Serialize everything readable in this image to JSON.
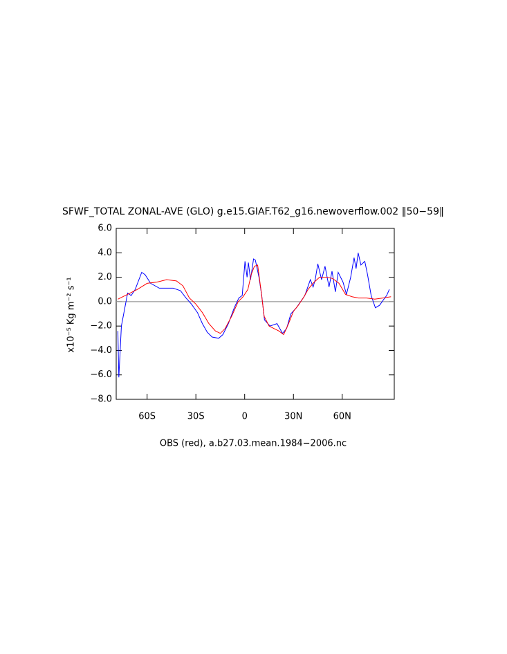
{
  "chart_data": {
    "type": "line",
    "title": "SFWF_TOTAL ZONAL-AVE (GLO) g.e15.GIAF.T62_g16.newoverflow.002 ‖50−59‖",
    "ylabel": "x10⁻⁵ Kg m⁻² s⁻¹",
    "annotation": "OBS (red), a.b27.03.mean.1984−2006.nc",
    "xlim": [
      -79,
      92
    ],
    "ylim": [
      -8,
      6
    ],
    "xticks": [
      {
        "value": -60,
        "label": "60S"
      },
      {
        "value": -30,
        "label": "30S"
      },
      0,
      {
        "value": 30,
        "label": "30N"
      },
      {
        "value": 60,
        "label": "60N"
      }
    ],
    "yticks": [
      {
        "value": -8,
        "label": "−8.0"
      },
      {
        "value": -6,
        "label": "−6.0"
      },
      {
        "value": -4,
        "label": "−4.0"
      },
      {
        "value": -2,
        "label": "−2.0"
      },
      {
        "value": 0,
        "label": "0.0"
      },
      {
        "value": 2,
        "label": "2.0"
      },
      {
        "value": 4,
        "label": "4.0"
      },
      {
        "value": 6,
        "label": "6.0"
      }
    ],
    "reference_line": 0,
    "series": [
      {
        "color": "#0000ff",
        "x": [
          -78,
          -77.4,
          -75.8,
          -72,
          -69.8,
          -67.3,
          -63.3,
          -61.2,
          -57.8,
          -52.5,
          -44,
          -39.5,
          -36.1,
          -32.7,
          -29,
          -26,
          -23,
          -20,
          -16,
          -13.4,
          -10,
          -6.4,
          -3.6,
          -1.5,
          0.2,
          1.5,
          2.3,
          3.6,
          5.5,
          6.6,
          8.8,
          10.5,
          12.2,
          15.6,
          19.9,
          23.3,
          25.8,
          28.4,
          31.8,
          34.4,
          37,
          40.4,
          42.1,
          43.4,
          45,
          47.3,
          49.4,
          51.9,
          53.7,
          55.8,
          57.5,
          60.5,
          62.6,
          65.2,
          67.3,
          68.5,
          69.8,
          71.5,
          73.9,
          75.6,
          77.8,
          80.4,
          83,
          85.6,
          87.3,
          89
        ],
        "values": [
          -2.4,
          -6.2,
          -2.0,
          0.7,
          0.5,
          1.0,
          2.4,
          2.2,
          1.5,
          1.1,
          1.1,
          0.9,
          0.3,
          -0.2,
          -0.9,
          -1.8,
          -2.5,
          -2.9,
          -3.0,
          -2.7,
          -1.8,
          -0.5,
          0.3,
          0.5,
          3.3,
          2.0,
          3.2,
          1.8,
          3.5,
          3.4,
          2.0,
          0.5,
          -1.5,
          -2.0,
          -1.8,
          -2.6,
          -2.2,
          -1.0,
          -0.5,
          0.0,
          0.5,
          1.8,
          1.2,
          1.8,
          3.1,
          1.8,
          2.9,
          1.2,
          2.5,
          0.8,
          2.4,
          1.6,
          0.6,
          2.0,
          3.6,
          2.7,
          4.0,
          3.0,
          3.3,
          2.2,
          0.5,
          -0.5,
          -0.3,
          0.2,
          0.5,
          1.0
        ]
      },
      {
        "color": "#ff0000",
        "x": [
          -78,
          -72,
          -66,
          -60,
          -54,
          -48,
          -42,
          -38,
          -34,
          -30,
          -26,
          -22,
          -18,
          -15,
          -12,
          -8,
          -4,
          -1,
          2,
          4,
          6,
          8,
          10,
          12,
          15,
          18,
          21,
          24,
          27,
          30,
          33,
          36,
          39,
          42,
          46,
          50,
          54,
          58,
          62,
          66,
          70,
          75,
          80,
          85,
          90
        ],
        "values": [
          0.2,
          0.6,
          1.0,
          1.5,
          1.6,
          1.8,
          1.7,
          1.3,
          0.3,
          -0.2,
          -0.9,
          -1.8,
          -2.4,
          -2.6,
          -2.2,
          -1.2,
          0.0,
          0.4,
          1.0,
          2.2,
          2.9,
          3.0,
          1.0,
          -1.2,
          -2.0,
          -2.2,
          -2.4,
          -2.7,
          -1.8,
          -0.8,
          -0.3,
          0.3,
          1.0,
          1.5,
          2.0,
          2.0,
          1.9,
          1.5,
          0.6,
          0.4,
          0.3,
          0.3,
          0.2,
          0.3,
          0.4
        ]
      }
    ]
  }
}
